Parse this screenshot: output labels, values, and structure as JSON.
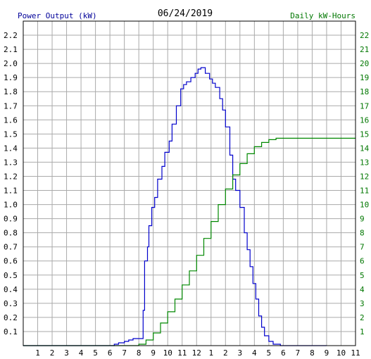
{
  "chart_data": {
    "type": "line",
    "title": "06/24/2019",
    "left_axis_label": "Power Output (kW)",
    "right_axis_label": "Daily kW-Hours",
    "x_ticks": [
      "1",
      "2",
      "3",
      "4",
      "5",
      "6",
      "7",
      "8",
      "9",
      "10",
      "11",
      "12",
      "1",
      "2",
      "3",
      "4",
      "5",
      "6",
      "7",
      "8",
      "9",
      "10",
      "11"
    ],
    "left_ticks": [
      "0.1",
      "0.2",
      "0.3",
      "0.4",
      "0.5",
      "0.6",
      "0.7",
      "0.8",
      "0.9",
      "1.0",
      "1.1",
      "1.2",
      "1.3",
      "1.4",
      "1.5",
      "1.6",
      "1.7",
      "1.8",
      "1.9",
      "2.0",
      "2.1",
      "2.2"
    ],
    "right_ticks": [
      "1",
      "2",
      "3",
      "4",
      "5",
      "6",
      "7",
      "8",
      "9",
      "10",
      "11",
      "12",
      "13",
      "14",
      "15",
      "16",
      "17",
      "18",
      "19",
      "20",
      "21",
      "22"
    ],
    "xlim": [
      0,
      23
    ],
    "ylim_left": [
      0,
      2.3
    ],
    "ylim_right": [
      0,
      23
    ],
    "grid": true,
    "colors": {
      "power": "#0000cc",
      "energy": "#008800",
      "left_label": "#000099",
      "right_label": "#007700",
      "grid": "#aaaaaa"
    },
    "series": [
      {
        "name": "Power Output (kW)",
        "axis": "left",
        "x": [
          0,
          5.6,
          6.3,
          6.6,
          7.0,
          7.3,
          7.6,
          7.9,
          8.2,
          8.3,
          8.4,
          8.6,
          8.7,
          8.9,
          9.1,
          9.3,
          9.6,
          9.8,
          10.1,
          10.3,
          10.6,
          10.9,
          11.1,
          11.3,
          11.6,
          11.9,
          12.1,
          12.3,
          12.6,
          12.9,
          13.1,
          13.3,
          13.6,
          13.8,
          14.0,
          14.3,
          14.5,
          14.7,
          15.0,
          15.3,
          15.5,
          15.7,
          15.9,
          16.1,
          16.3,
          16.5,
          16.7,
          17.0,
          17.3,
          17.5,
          17.8,
          18.0,
          18.3,
          18.6,
          18.9,
          19.1,
          19.4,
          19.7,
          19.9,
          20.1,
          20.4,
          20.7,
          21.0
        ],
        "y": [
          0,
          0,
          0.01,
          0.02,
          0.03,
          0.04,
          0.05,
          0.05,
          0.05,
          0.25,
          0.6,
          0.7,
          0.85,
          0.98,
          1.05,
          1.18,
          1.27,
          1.37,
          1.45,
          1.57,
          1.7,
          1.82,
          1.85,
          1.87,
          1.9,
          1.93,
          1.96,
          1.97,
          1.93,
          1.89,
          1.86,
          1.83,
          1.75,
          1.67,
          1.55,
          1.35,
          1.18,
          1.1,
          0.98,
          0.8,
          0.68,
          0.56,
          0.44,
          0.33,
          0.21,
          0.13,
          0.07,
          0.03,
          0.01,
          0.01,
          0,
          0,
          0,
          0,
          0,
          0,
          0,
          0,
          0,
          0,
          0,
          0,
          0
        ]
      },
      {
        "name": "Daily kW-Hours",
        "axis": "right",
        "x": [
          0,
          7.5,
          8.0,
          8.5,
          9.0,
          9.5,
          10.0,
          10.5,
          11.0,
          11.5,
          12.0,
          12.5,
          13.0,
          13.5,
          14.0,
          14.5,
          15.0,
          15.5,
          16.0,
          16.5,
          17.0,
          17.5,
          18.0,
          18.5,
          19.0,
          19.5,
          20.0,
          20.5,
          21.0,
          22.0,
          23.0
        ],
        "y": [
          0,
          0,
          0.1,
          0.4,
          0.9,
          1.6,
          2.4,
          3.3,
          4.3,
          5.3,
          6.4,
          7.6,
          8.8,
          10.0,
          11.1,
          12.1,
          12.9,
          13.6,
          14.1,
          14.4,
          14.6,
          14.7,
          14.7,
          14.7,
          14.7,
          14.7,
          14.7,
          14.7,
          14.7,
          14.7,
          14.7
        ]
      }
    ]
  }
}
